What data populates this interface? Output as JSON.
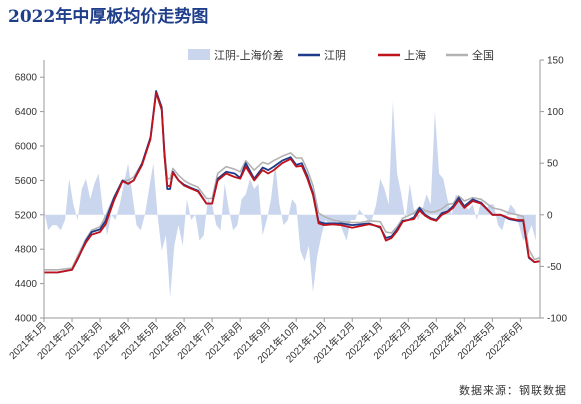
{
  "chart_data": {
    "type": "line",
    "title": "2022年中厚板均价走势图",
    "source": "数据来源：钢联数据",
    "x_tick_labels": [
      "2021年1月",
      "2021年2月",
      "2021年3月",
      "2021年4月",
      "2021年5月",
      "2021年6月",
      "2021年7月",
      "2021年8月",
      "2021年9月",
      "2021年10月",
      "2021年11月",
      "2021年12月",
      "2022年1月",
      "2022年2月",
      "2022年3月",
      "2022年4月",
      "2022年5月",
      "2022年6月"
    ],
    "x_range": [
      0,
      17.7
    ],
    "y_left": {
      "min": 4000,
      "max": 7000,
      "ticks": [
        4000,
        4400,
        4800,
        5200,
        5600,
        6000,
        6400,
        6800
      ]
    },
    "y_right": {
      "min": -100,
      "max": 150,
      "ticks": [
        -100,
        -50,
        0,
        50,
        100,
        150
      ]
    },
    "grid": false,
    "legend_position": "top-right",
    "series": [
      {
        "name": "江阴-上海价差",
        "type": "area",
        "axis": "right",
        "color": "#c9d6ee",
        "x": [
          0.0,
          0.15,
          0.3,
          0.45,
          0.6,
          0.75,
          0.9,
          1.05,
          1.2,
          1.35,
          1.5,
          1.65,
          1.8,
          1.95,
          2.1,
          2.25,
          2.4,
          2.55,
          2.7,
          2.85,
          3.0,
          3.15,
          3.3,
          3.45,
          3.6,
          3.75,
          3.9,
          4.05,
          4.2,
          4.35,
          4.5,
          4.65,
          4.8,
          4.95,
          5.1,
          5.25,
          5.4,
          5.55,
          5.7,
          5.85,
          6.0,
          6.15,
          6.3,
          6.45,
          6.6,
          6.75,
          6.9,
          7.05,
          7.2,
          7.35,
          7.5,
          7.65,
          7.8,
          7.95,
          8.1,
          8.25,
          8.4,
          8.55,
          8.7,
          8.85,
          9.0,
          9.15,
          9.3,
          9.45,
          9.6,
          9.75,
          9.9,
          10.05,
          10.2,
          10.35,
          10.5,
          10.65,
          10.8,
          10.95,
          11.1,
          11.25,
          11.4,
          11.55,
          11.7,
          11.85,
          12.0,
          12.15,
          12.3,
          12.45,
          12.6,
          12.75,
          12.9,
          13.05,
          13.2,
          13.35,
          13.5,
          13.65,
          13.8,
          13.95,
          14.1,
          14.25,
          14.4,
          14.55,
          14.7,
          14.85,
          15.0,
          15.15,
          15.3,
          15.45,
          15.6,
          15.75,
          15.9,
          16.05,
          16.2,
          16.35,
          16.5,
          16.65,
          16.8,
          16.95,
          17.1,
          17.25,
          17.4,
          17.55
        ],
        "values": [
          5,
          -15,
          -10,
          -10,
          -15,
          -5,
          35,
          10,
          -5,
          25,
          35,
          15,
          30,
          40,
          5,
          -20,
          0,
          -5,
          10,
          30,
          50,
          20,
          -10,
          -15,
          0,
          25,
          50,
          0,
          -35,
          -20,
          -80,
          -30,
          -10,
          -30,
          15,
          -5,
          0,
          -25,
          -20,
          15,
          10,
          -10,
          -15,
          30,
          5,
          -15,
          -10,
          15,
          20,
          35,
          25,
          30,
          -20,
          -5,
          15,
          50,
          10,
          -10,
          -5,
          15,
          10,
          -35,
          -45,
          -30,
          -75,
          -40,
          -20,
          -5,
          -10,
          -10,
          -5,
          -15,
          -25,
          -5,
          -5,
          5,
          0,
          -5,
          -5,
          10,
          35,
          25,
          10,
          110,
          40,
          20,
          -5,
          30,
          5,
          -5,
          5,
          20,
          10,
          100,
          40,
          35,
          15,
          0,
          20,
          15,
          10,
          5,
          10,
          -5,
          15,
          5,
          10,
          10,
          -10,
          -15,
          0,
          10,
          5,
          -10,
          -25,
          -20,
          -10,
          -25
        ]
      },
      {
        "name": "江阴",
        "type": "line",
        "axis": "left",
        "color": "#1f3b8a",
        "x": [
          0,
          0.5,
          1,
          1.2,
          1.5,
          1.7,
          2,
          2.2,
          2.5,
          2.8,
          3,
          3.2,
          3.5,
          3.8,
          4,
          4.2,
          4.3,
          4.4,
          4.5,
          4.6,
          4.8,
          5,
          5.2,
          5.5,
          5.8,
          6,
          6.2,
          6.5,
          6.8,
          7,
          7.2,
          7.5,
          7.8,
          8,
          8.2,
          8.5,
          8.8,
          9,
          9.2,
          9.4,
          9.6,
          9.8,
          10,
          10.3,
          10.6,
          11,
          11.3,
          11.6,
          12,
          12.2,
          12.4,
          12.6,
          12.8,
          13,
          13.2,
          13.4,
          13.6,
          13.8,
          14,
          14.2,
          14.4,
          14.6,
          14.8,
          15,
          15.3,
          15.6,
          16,
          16.3,
          16.6,
          16.9,
          17.1,
          17.3,
          17.5,
          17.7
        ],
        "values": [
          4530,
          4530,
          4560,
          4680,
          4900,
          5000,
          5030,
          5130,
          5400,
          5600,
          5560,
          5600,
          5800,
          6100,
          6640,
          6450,
          5900,
          5500,
          5500,
          5700,
          5600,
          5550,
          5520,
          5480,
          5330,
          5330,
          5620,
          5700,
          5680,
          5630,
          5800,
          5620,
          5750,
          5720,
          5760,
          5830,
          5870,
          5780,
          5800,
          5650,
          5450,
          5120,
          5100,
          5100,
          5100,
          5080,
          5090,
          5100,
          5050,
          4930,
          4950,
          5030,
          5130,
          5140,
          5170,
          5280,
          5200,
          5160,
          5140,
          5220,
          5240,
          5300,
          5400,
          5300,
          5380,
          5340,
          5200,
          5200,
          5150,
          5130,
          5130,
          4700,
          4650,
          4660
        ]
      },
      {
        "name": "上海",
        "type": "line",
        "axis": "left",
        "color": "#c0121b",
        "x": [
          0,
          0.5,
          1,
          1.2,
          1.5,
          1.7,
          2,
          2.2,
          2.5,
          2.8,
          3,
          3.2,
          3.5,
          3.8,
          4,
          4.2,
          4.3,
          4.4,
          4.5,
          4.6,
          4.8,
          5,
          5.2,
          5.5,
          5.8,
          6,
          6.2,
          6.5,
          6.8,
          7,
          7.2,
          7.5,
          7.8,
          8,
          8.2,
          8.5,
          8.8,
          9,
          9.2,
          9.4,
          9.6,
          9.8,
          10,
          10.3,
          10.6,
          11,
          11.3,
          11.6,
          12,
          12.2,
          12.4,
          12.6,
          12.8,
          13,
          13.2,
          13.4,
          13.6,
          13.8,
          14,
          14.2,
          14.4,
          14.6,
          14.8,
          15,
          15.3,
          15.6,
          16,
          16.3,
          16.6,
          16.9,
          17.1,
          17.3,
          17.5,
          17.7
        ],
        "values": [
          4530,
          4530,
          4560,
          4690,
          4880,
          4970,
          5000,
          5090,
          5370,
          5590,
          5560,
          5600,
          5780,
          6080,
          6620,
          6420,
          5880,
          5540,
          5530,
          5690,
          5600,
          5540,
          5510,
          5470,
          5330,
          5330,
          5600,
          5680,
          5640,
          5620,
          5760,
          5600,
          5720,
          5680,
          5720,
          5800,
          5850,
          5760,
          5770,
          5620,
          5430,
          5100,
          5080,
          5090,
          5080,
          5050,
          5070,
          5090,
          5060,
          4900,
          4930,
          5010,
          5120,
          5140,
          5150,
          5250,
          5190,
          5150,
          5130,
          5200,
          5230,
          5280,
          5370,
          5280,
          5360,
          5330,
          5200,
          5200,
          5160,
          5140,
          5140,
          4710,
          4650,
          4660
        ]
      },
      {
        "name": "全国",
        "type": "line",
        "axis": "left",
        "color": "#b2b2b2",
        "x": [
          0,
          0.5,
          1,
          1.2,
          1.5,
          1.7,
          2,
          2.2,
          2.5,
          2.8,
          3,
          3.2,
          3.5,
          3.8,
          4,
          4.2,
          4.3,
          4.4,
          4.5,
          4.6,
          4.8,
          5,
          5.2,
          5.5,
          5.8,
          6,
          6.2,
          6.5,
          6.8,
          7,
          7.2,
          7.5,
          7.8,
          8,
          8.2,
          8.5,
          8.8,
          9,
          9.2,
          9.4,
          9.6,
          9.8,
          10,
          10.3,
          10.6,
          11,
          11.3,
          11.6,
          12,
          12.2,
          12.4,
          12.6,
          12.8,
          13,
          13.2,
          13.4,
          13.6,
          13.8,
          14,
          14.2,
          14.4,
          14.6,
          14.8,
          15,
          15.3,
          15.6,
          16,
          16.3,
          16.6,
          16.9,
          17.1,
          17.3,
          17.5,
          17.7
        ],
        "values": [
          4560,
          4560,
          4580,
          4720,
          4920,
          5020,
          5060,
          5180,
          5410,
          5600,
          5600,
          5640,
          5800,
          6100,
          6610,
          6460,
          5960,
          5620,
          5620,
          5740,
          5660,
          5600,
          5560,
          5520,
          5390,
          5390,
          5680,
          5760,
          5730,
          5700,
          5830,
          5720,
          5810,
          5790,
          5830,
          5880,
          5920,
          5860,
          5860,
          5720,
          5540,
          5220,
          5180,
          5140,
          5120,
          5110,
          5110,
          5130,
          5120,
          5000,
          4990,
          5060,
          5160,
          5190,
          5220,
          5290,
          5250,
          5230,
          5240,
          5270,
          5320,
          5330,
          5420,
          5360,
          5400,
          5380,
          5280,
          5260,
          5220,
          5200,
          5180,
          4800,
          4680,
          4700
        ]
      }
    ]
  }
}
